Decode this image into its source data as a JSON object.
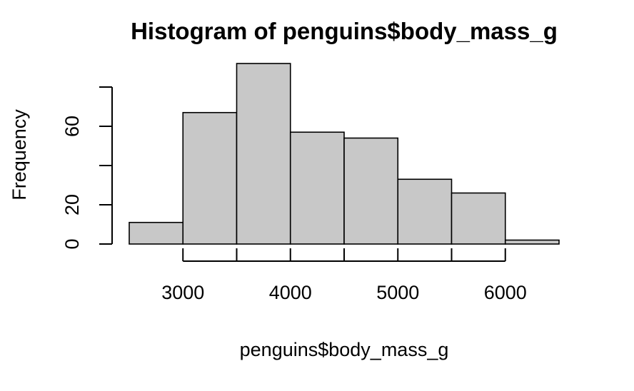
{
  "chart_data": {
    "type": "bar",
    "title": "Histogram of penguins$body_mass_g",
    "xlabel": "penguins$body_mass_g",
    "ylabel": "Frequency",
    "bins": [
      {
        "from": 2500,
        "to": 3000,
        "count": 11
      },
      {
        "from": 3000,
        "to": 3500,
        "count": 67
      },
      {
        "from": 3500,
        "to": 4000,
        "count": 92
      },
      {
        "from": 4000,
        "to": 4500,
        "count": 57
      },
      {
        "from": 4500,
        "to": 5000,
        "count": 54
      },
      {
        "from": 5000,
        "to": 5500,
        "count": 33
      },
      {
        "from": 5500,
        "to": 6000,
        "count": 26
      },
      {
        "from": 6000,
        "to": 6500,
        "count": 2
      }
    ],
    "x_ticks": [
      3000,
      4000,
      5000,
      6000
    ],
    "x_minor_ticks": [
      3500,
      4500,
      5500
    ],
    "y_ticks": [
      0,
      20,
      40,
      60,
      80
    ],
    "y_tick_labels": [
      "0",
      "20",
      "",
      "60",
      ""
    ],
    "xlim": [
      2500,
      6500
    ],
    "ylim": [
      0,
      92
    ],
    "bar_color": "#c8c8c8",
    "grid": false
  }
}
